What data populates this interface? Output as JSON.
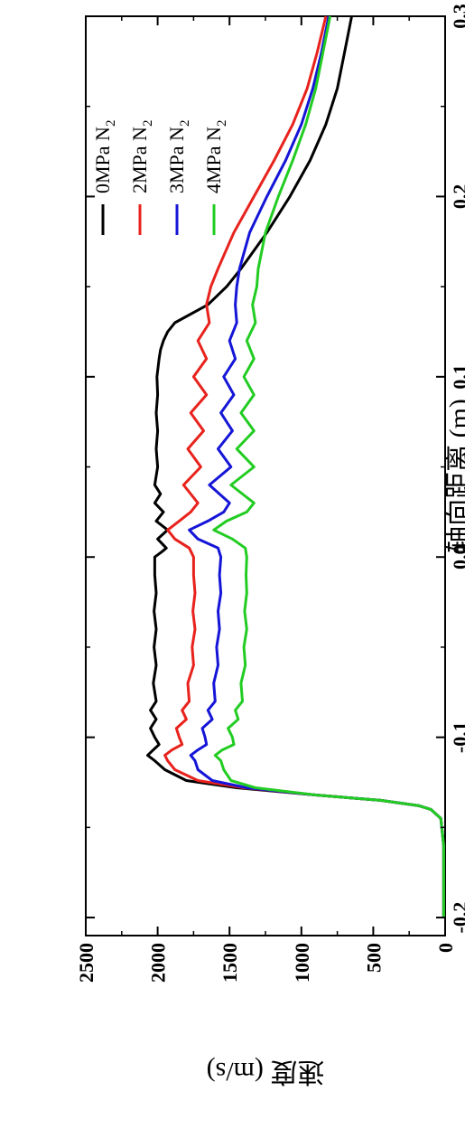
{
  "chart_data": {
    "type": "line",
    "orientation": "rotated-90-ccw",
    "xlabel": "轴向距离 (m)",
    "ylabel": "速度 (m/s)",
    "xlim": [
      -0.21,
      0.3
    ],
    "ylim": [
      0,
      2500
    ],
    "xticks": [
      -0.2,
      -0.1,
      0.0,
      0.1,
      0.2,
      0.3
    ],
    "xtick_labels": [
      "-0.2",
      "-0.1",
      "0.0",
      "0.1",
      "0.2",
      "0.3"
    ],
    "yticks": [
      0,
      500,
      1000,
      1500,
      2000,
      2500
    ],
    "ytick_labels": [
      "0",
      "500",
      "1000",
      "1500",
      "2000",
      "2500"
    ],
    "grid": false,
    "legend_position": "top-right",
    "series": [
      {
        "name": "0MPa N",
        "name_sub": "2",
        "color": "#000000",
        "x": [
          -0.2,
          -0.16,
          -0.145,
          -0.14,
          -0.138,
          -0.135,
          -0.132,
          -0.128,
          -0.124,
          -0.118,
          -0.113,
          -0.11,
          -0.107,
          -0.104,
          -0.1,
          -0.095,
          -0.09,
          -0.085,
          -0.08,
          -0.07,
          -0.06,
          -0.05,
          -0.04,
          -0.03,
          -0.02,
          -0.01,
          0.0,
          0.003,
          0.005,
          0.01,
          0.015,
          0.02,
          0.025,
          0.03,
          0.035,
          0.04,
          0.05,
          0.06,
          0.07,
          0.08,
          0.09,
          0.1,
          0.11,
          0.115,
          0.12,
          0.125,
          0.13,
          0.14,
          0.15,
          0.16,
          0.18,
          0.2,
          0.22,
          0.24,
          0.26,
          0.28,
          0.3
        ],
        "y": [
          10,
          10,
          30,
          100,
          180,
          450,
          900,
          1450,
          1800,
          1950,
          2020,
          2070,
          2030,
          1990,
          2020,
          2050,
          2010,
          2050,
          2010,
          2030,
          2010,
          2025,
          2010,
          2025,
          2010,
          2020,
          2020,
          1970,
          1940,
          2000,
          1930,
          2010,
          1960,
          2020,
          1980,
          2020,
          2000,
          2010,
          2000,
          2010,
          2000,
          2005,
          1990,
          1980,
          1960,
          1930,
          1880,
          1650,
          1520,
          1420,
          1240,
          1080,
          940,
          830,
          750,
          700,
          650
        ]
      },
      {
        "name": "2MPa N",
        "name_sub": "2",
        "color": "#e8221c",
        "x": [
          -0.2,
          -0.16,
          -0.145,
          -0.14,
          -0.138,
          -0.135,
          -0.132,
          -0.128,
          -0.124,
          -0.118,
          -0.113,
          -0.11,
          -0.107,
          -0.104,
          -0.1,
          -0.095,
          -0.09,
          -0.085,
          -0.08,
          -0.07,
          -0.06,
          -0.05,
          -0.04,
          -0.03,
          -0.02,
          -0.01,
          0.0,
          0.005,
          0.01,
          0.015,
          0.02,
          0.025,
          0.03,
          0.04,
          0.05,
          0.06,
          0.07,
          0.08,
          0.09,
          0.1,
          0.11,
          0.12,
          0.13,
          0.14,
          0.15,
          0.16,
          0.18,
          0.2,
          0.22,
          0.24,
          0.26,
          0.28,
          0.3
        ],
        "y": [
          10,
          10,
          30,
          100,
          180,
          450,
          900,
          1400,
          1720,
          1880,
          1930,
          1950,
          1900,
          1830,
          1850,
          1870,
          1800,
          1830,
          1780,
          1790,
          1750,
          1760,
          1740,
          1755,
          1740,
          1750,
          1750,
          1780,
          1880,
          1930,
          1850,
          1770,
          1720,
          1820,
          1700,
          1790,
          1680,
          1770,
          1660,
          1750,
          1660,
          1720,
          1640,
          1660,
          1630,
          1580,
          1470,
          1330,
          1190,
          1060,
          960,
          890,
          830
        ]
      },
      {
        "name": "3MPa N",
        "name_sub": "2",
        "color": "#1515d8",
        "x": [
          -0.2,
          -0.16,
          -0.145,
          -0.14,
          -0.138,
          -0.135,
          -0.132,
          -0.128,
          -0.124,
          -0.118,
          -0.113,
          -0.11,
          -0.107,
          -0.104,
          -0.1,
          -0.095,
          -0.09,
          -0.085,
          -0.08,
          -0.07,
          -0.06,
          -0.05,
          -0.04,
          -0.03,
          -0.02,
          -0.01,
          0.0,
          0.005,
          0.01,
          0.015,
          0.02,
          0.025,
          0.03,
          0.04,
          0.05,
          0.06,
          0.07,
          0.08,
          0.09,
          0.1,
          0.11,
          0.12,
          0.13,
          0.14,
          0.15,
          0.16,
          0.18,
          0.2,
          0.22,
          0.24,
          0.26,
          0.28,
          0.3
        ],
        "y": [
          10,
          10,
          30,
          100,
          180,
          450,
          900,
          1380,
          1620,
          1720,
          1740,
          1770,
          1720,
          1660,
          1670,
          1690,
          1620,
          1650,
          1600,
          1610,
          1580,
          1590,
          1570,
          1580,
          1560,
          1570,
          1560,
          1580,
          1720,
          1780,
          1650,
          1540,
          1500,
          1640,
          1490,
          1580,
          1480,
          1560,
          1470,
          1540,
          1460,
          1500,
          1450,
          1460,
          1450,
          1430,
          1360,
          1240,
          1110,
          1000,
          920,
          860,
          810
        ]
      },
      {
        "name": "4MPa N",
        "name_sub": "2",
        "color": "#22cc22",
        "x": [
          -0.2,
          -0.16,
          -0.145,
          -0.14,
          -0.138,
          -0.135,
          -0.132,
          -0.128,
          -0.124,
          -0.118,
          -0.113,
          -0.11,
          -0.107,
          -0.104,
          -0.1,
          -0.095,
          -0.09,
          -0.085,
          -0.08,
          -0.07,
          -0.06,
          -0.05,
          -0.04,
          -0.03,
          -0.02,
          -0.01,
          0.0,
          0.005,
          0.01,
          0.015,
          0.02,
          0.025,
          0.03,
          0.04,
          0.05,
          0.06,
          0.07,
          0.08,
          0.09,
          0.1,
          0.11,
          0.12,
          0.13,
          0.14,
          0.15,
          0.16,
          0.18,
          0.2,
          0.22,
          0.24,
          0.26,
          0.28,
          0.3
        ],
        "y": [
          10,
          10,
          30,
          100,
          180,
          450,
          900,
          1320,
          1490,
          1540,
          1560,
          1600,
          1550,
          1470,
          1480,
          1510,
          1440,
          1460,
          1410,
          1420,
          1390,
          1400,
          1380,
          1395,
          1380,
          1385,
          1380,
          1390,
          1480,
          1610,
          1520,
          1380,
          1330,
          1490,
          1330,
          1450,
          1330,
          1420,
          1330,
          1400,
          1330,
          1380,
          1320,
          1340,
          1310,
          1300,
          1250,
          1160,
          1060,
          970,
          900,
          850,
          800
        ]
      }
    ]
  }
}
